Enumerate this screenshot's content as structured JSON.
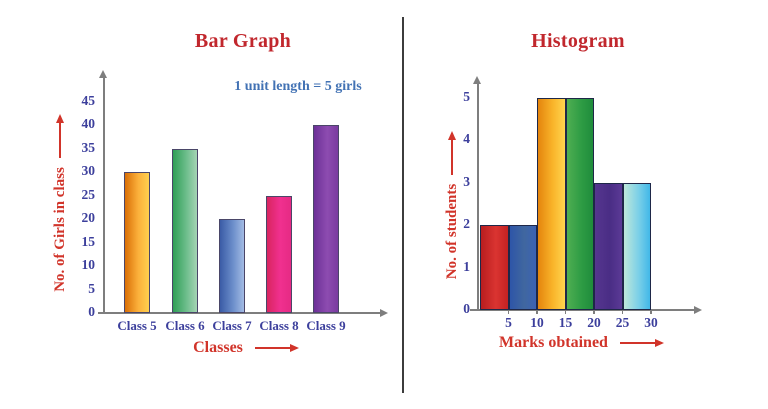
{
  "figure": {
    "background": "#ffffff",
    "divider_color": "#3c3c3c",
    "axis_color": "#7e7e7e"
  },
  "chart_data": [
    {
      "type": "bar",
      "title": "Bar Graph",
      "annotation": "1 unit length = 5 girls",
      "xlabel": "Classes",
      "ylabel": "No. of Girls in class",
      "categories": [
        "Class 5",
        "Class 6",
        "Class 7",
        "Class 8",
        "Class 9"
      ],
      "values": [
        30,
        35,
        20,
        25,
        40
      ],
      "y_ticks": [
        0,
        5,
        10,
        15,
        20,
        25,
        30,
        35,
        40,
        45
      ],
      "ylim": [
        0,
        50
      ],
      "grid": false,
      "legend": false,
      "title_color": "#c1272d",
      "annotation_color": "#4272b4",
      "axis_label_color": "#d1342a",
      "tick_color": "#3c3f9c",
      "bar_gradients": [
        [
          "#d96f06",
          "#fbb03b",
          "#ffd04e"
        ],
        [
          "#2f9e56",
          "#6cbd8b",
          "#a5d4b4"
        ],
        [
          "#3a5ba6",
          "#6c8fcb",
          "#a3bbe4"
        ],
        [
          "#d92560",
          "#f0308f",
          "#e62a84"
        ],
        [
          "#6c3097",
          "#8d4cb0",
          "#7a3ba0"
        ]
      ]
    },
    {
      "type": "histogram",
      "title": "Histogram",
      "xlabel": "Marks obtained",
      "ylabel": "No. of students",
      "bin_edges": [
        0,
        5,
        10,
        15,
        20,
        25,
        30
      ],
      "values": [
        2,
        2,
        5,
        5,
        3,
        3
      ],
      "x_ticks": [
        5,
        10,
        15,
        20,
        25,
        30
      ],
      "y_ticks": [
        0,
        1,
        2,
        3,
        4,
        5
      ],
      "ylim": [
        0,
        5.5
      ],
      "grid": false,
      "legend": false,
      "title_color": "#c1272d",
      "axis_label_color": "#d1342a",
      "tick_color": "#3c3f9c",
      "bar_gradients": [
        [
          "#b81d1f",
          "#da3431",
          "#c42222"
        ],
        [
          "#2e55a8",
          "#40679f",
          "#3c62b5"
        ],
        [
          "#e4850d",
          "#f9b42a",
          "#ffd44f"
        ],
        [
          "#4fae52",
          "#2e9c44",
          "#1f8c3c"
        ],
        [
          "#55368f",
          "#4a2d85",
          "#5b3a96"
        ],
        [
          "#bfe8da",
          "#7cd0e8",
          "#41b8e8"
        ]
      ]
    }
  ]
}
